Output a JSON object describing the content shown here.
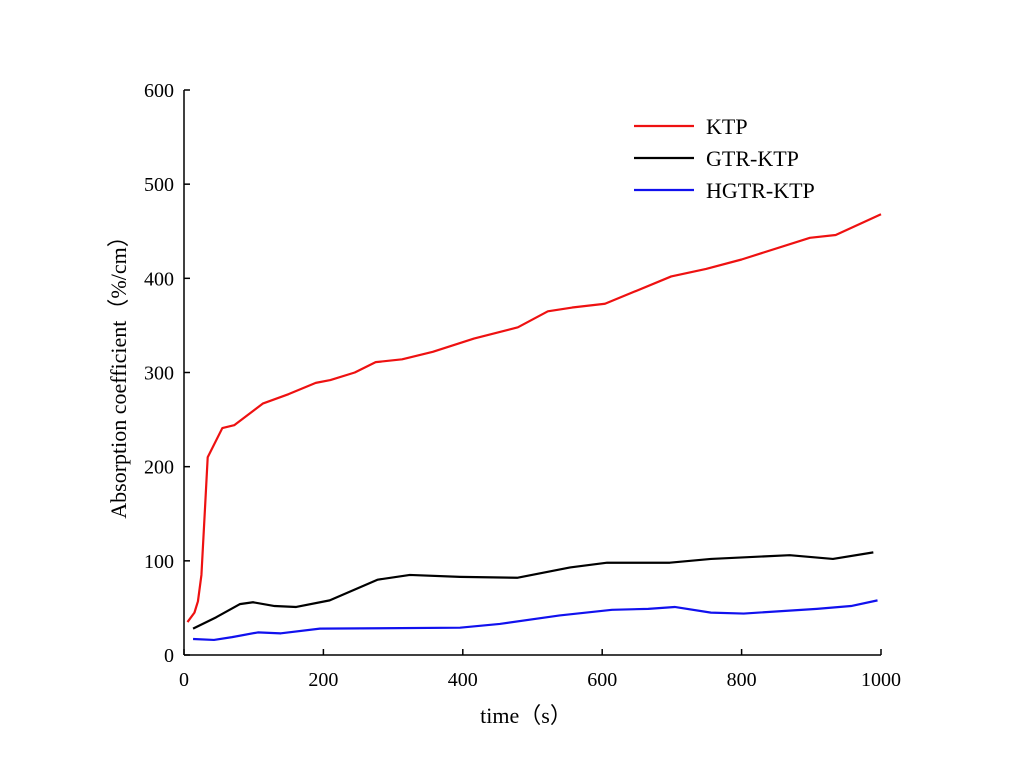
{
  "chart_data": {
    "type": "line",
    "xlabel": "time（s）",
    "ylabel": "Absorption coefficient（%/cm）",
    "xlim": [
      0,
      1000
    ],
    "ylim": [
      0,
      600
    ],
    "xticks": [
      0,
      200,
      400,
      600,
      800,
      1000
    ],
    "yticks": [
      0,
      100,
      200,
      300,
      400,
      500,
      600
    ],
    "legend": "upper right",
    "series": [
      {
        "name": "KTP",
        "color": "#ee1111",
        "x": [
          5,
          15,
          20,
          25,
          30,
          34,
          55,
          72,
          113,
          150,
          189,
          210,
          245,
          275,
          313,
          357,
          416,
          479,
          522,
          557,
          604,
          699,
          749,
          800,
          898,
          935,
          1000
        ],
        "values": [
          35,
          45,
          57,
          85,
          154,
          210,
          241,
          244,
          267,
          277,
          289,
          292,
          300,
          311,
          314,
          322,
          336,
          348,
          365,
          369,
          373,
          402,
          410,
          420,
          443,
          446,
          468
        ]
      },
      {
        "name": "GTR-KTP",
        "color": "#000000",
        "x": [
          13,
          46,
          80,
          99,
          130,
          161,
          209,
          278,
          324,
          396,
          478,
          554,
          607,
          697,
          756,
          869,
          931,
          989
        ],
        "values": [
          28,
          40,
          54,
          56,
          52,
          51,
          58,
          80,
          85,
          83,
          82,
          93,
          98,
          98,
          102,
          106,
          102,
          109
        ]
      },
      {
        "name": "HGTR-KTP",
        "color": "#1111ee",
        "x": [
          13,
          43,
          69,
          106,
          139,
          195,
          396,
          453,
          539,
          614,
          666,
          704,
          756,
          803,
          908,
          957,
          995
        ],
        "values": [
          17,
          16,
          19,
          24,
          23,
          28,
          29,
          33,
          42,
          48,
          49,
          51,
          45,
          44,
          49,
          52,
          58
        ]
      }
    ]
  }
}
